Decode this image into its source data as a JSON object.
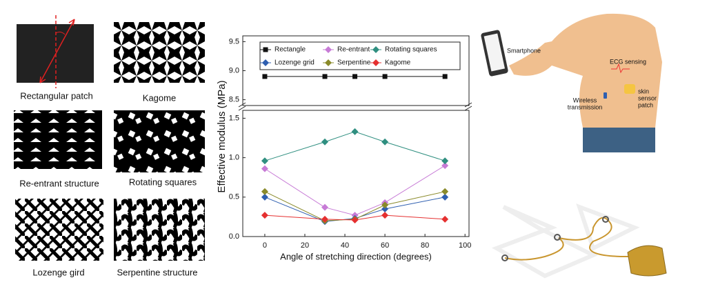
{
  "panels": {
    "rectangular": "Rectangular patch",
    "kagome": "Kagome",
    "reentrant": "Re-entrant structure",
    "rotating": "Rotating squares",
    "lozenge": "Lozenge gird",
    "serpentine": "Serpentine structure"
  },
  "illustration": {
    "phone": "Smartphone",
    "ecg": "ECG sensing",
    "wireless": [
      "Wireless",
      "transmission"
    ],
    "patch": [
      "skin",
      "sensor",
      "patch"
    ]
  },
  "chart_data": {
    "type": "line",
    "x_label": "Angle of stretching direction (degrees)",
    "y_label": "Effective modulus (MPa)",
    "x": [
      0,
      30,
      45,
      60,
      90
    ],
    "xlim": [
      -11,
      102
    ],
    "xticks": [
      0,
      20,
      40,
      60,
      80,
      100
    ],
    "ylim": [
      0,
      1.6
    ],
    "yticks": [
      {
        "value": 0,
        "label": "0.0"
      },
      0.5,
      {
        "value": 1,
        "label": "1.0"
      },
      1.5
    ],
    "y_upper_lim": [
      8.4,
      9.6
    ],
    "y_upper_ticks": [
      8.5,
      {
        "value": 9,
        "label": "9.0"
      },
      9.5
    ],
    "series": [
      {
        "name": "Rectangle",
        "color": "#111111",
        "marker": "square",
        "values": [
          8.9,
          8.9,
          8.9,
          8.9,
          8.9
        ]
      },
      {
        "name": "Re-entrant",
        "color": "#c77bd6",
        "marker": "diamond",
        "values": [
          0.86,
          0.37,
          0.27,
          0.43,
          0.9
        ]
      },
      {
        "name": "Rotating squares",
        "color": "#2f8f80",
        "marker": "diamond",
        "values": [
          0.96,
          1.2,
          1.33,
          1.2,
          0.96
        ]
      },
      {
        "name": "Lozenge grid",
        "color": "#2f5fb0",
        "marker": "diamond",
        "values": [
          0.5,
          0.19,
          0.23,
          0.35,
          0.5
        ]
      },
      {
        "name": "Serpentine",
        "color": "#8a8a2a",
        "marker": "diamond",
        "values": [
          0.57,
          0.2,
          0.22,
          0.4,
          0.57
        ]
      },
      {
        "name": "Kagome",
        "color": "#e53030",
        "marker": "diamond",
        "values": [
          0.27,
          0.22,
          0.21,
          0.27,
          0.22
        ]
      }
    ]
  }
}
